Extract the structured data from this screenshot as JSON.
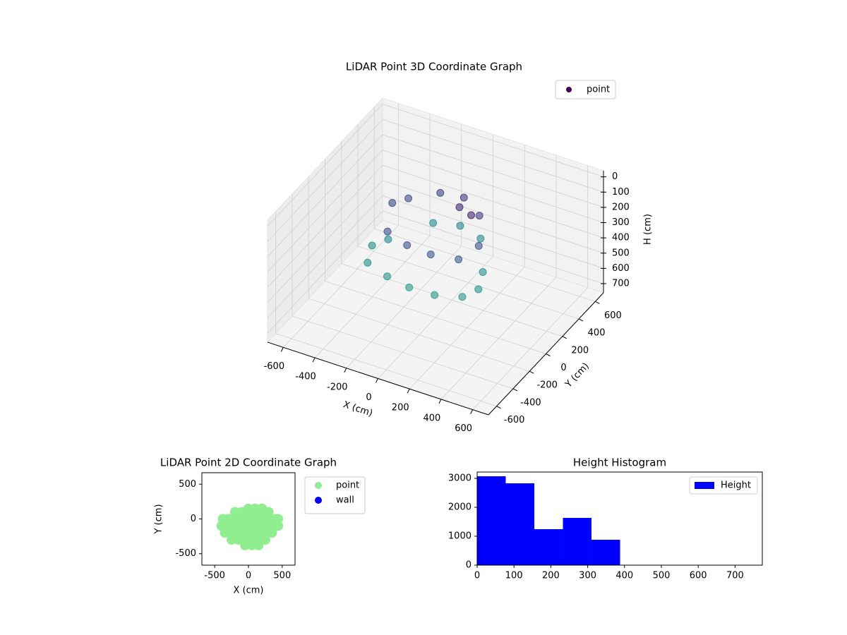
{
  "chart_data": [
    {
      "type": "scatter3d",
      "title": "LiDAR Point 3D Coordinate Graph",
      "xlabel": "X (cm)",
      "ylabel": "Y (cm)",
      "zlabel": "H (cm)",
      "xlim": [
        -700,
        700
      ],
      "ylim": [
        -700,
        700
      ],
      "zlim": [
        -40,
        760
      ],
      "z_inverted": true,
      "xticks": [
        -600,
        -400,
        -200,
        0,
        200,
        400,
        600
      ],
      "yticks": [
        -600,
        -400,
        -200,
        0,
        200,
        400,
        600
      ],
      "zticks": [
        0,
        100,
        200,
        300,
        400,
        500,
        600,
        700
      ],
      "grid": true,
      "legend": "upper right",
      "colormap": "viridis",
      "series": [
        {
          "name": "point",
          "color": "#440154",
          "x": [
            -300,
            -150,
            0,
            150,
            300,
            350,
            300,
            150,
            0,
            -150,
            -300,
            -350,
            -250,
            -100,
            50,
            200,
            300,
            250,
            100,
            -50,
            -200,
            -300,
            100,
            200
          ],
          "y": [
            0,
            260,
            300,
            260,
            0,
            -150,
            -250,
            -300,
            -320,
            -300,
            -250,
            -100,
            150,
            250,
            250,
            150,
            -50,
            -200,
            -250,
            -250,
            -200,
            50,
            100,
            50
          ],
          "z": [
            350,
            340,
            330,
            340,
            360,
            370,
            380,
            390,
            380,
            370,
            360,
            350,
            150,
            120,
            100,
            110,
            160,
            180,
            170,
            160,
            150,
            140,
            60,
            50
          ]
        }
      ]
    },
    {
      "type": "scatter",
      "title": "LiDAR Point 2D Coordinate Graph",
      "xlabel": "X (cm)",
      "ylabel": "Y (cm)",
      "xlim": [
        -690,
        690
      ],
      "ylim": [
        -665,
        665
      ],
      "xticks": [
        -500,
        0,
        500
      ],
      "yticks": [
        -500,
        0,
        500
      ],
      "legend": "outside right",
      "series": [
        {
          "name": "point",
          "color": "#90ee90",
          "x": [
            0,
            100,
            200,
            -200,
            -100,
            0,
            100,
            200,
            300,
            -380,
            -300,
            -200,
            -100,
            0,
            100,
            200,
            300,
            400,
            440,
            -400,
            -300,
            -200,
            -100,
            0,
            100,
            200,
            300,
            400,
            440,
            -350,
            -250,
            -150,
            -50,
            50,
            150,
            250,
            350,
            -250,
            -150,
            -50,
            50,
            150,
            250,
            -50,
            50,
            150
          ],
          "y": [
            150,
            150,
            150,
            100,
            100,
            100,
            100,
            100,
            100,
            0,
            0,
            0,
            0,
            0,
            0,
            0,
            0,
            0,
            0,
            -100,
            -100,
            -100,
            -100,
            -100,
            -100,
            -100,
            -100,
            -100,
            -100,
            -200,
            -200,
            -200,
            -200,
            -200,
            -200,
            -200,
            -200,
            -300,
            -300,
            -300,
            -300,
            -300,
            -300,
            -380,
            -380,
            -380
          ]
        },
        {
          "name": "wall",
          "color": "#0000ff",
          "x": [],
          "y": []
        }
      ]
    },
    {
      "type": "histogram",
      "title": "Height Histogram",
      "bins": [
        0,
        77.6,
        155.2,
        232.8,
        310.4,
        388
      ],
      "xlim": [
        0,
        774
      ],
      "ylim": [
        0,
        3220
      ],
      "xticks": [
        0,
        100,
        200,
        300,
        400,
        500,
        600,
        700
      ],
      "yticks": [
        0,
        1000,
        2000,
        3000
      ],
      "legend": "upper right",
      "series": [
        {
          "name": "Height",
          "color": "#0000ff",
          "values": [
            3073,
            2829,
            1244,
            1634,
            878
          ]
        }
      ]
    }
  ]
}
